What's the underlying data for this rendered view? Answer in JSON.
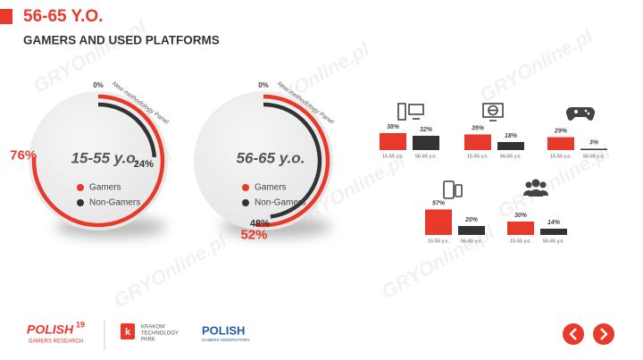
{
  "header": {
    "title": "56-65 Y.O.",
    "subtitle": "GAMERS AND USED PLATFORMS"
  },
  "watermark": "GRYOnline.pl",
  "chart_data": [
    {
      "type": "donut",
      "title": "15-55 y.o.",
      "start": {
        "value": 0,
        "label": "0%"
      },
      "annotation": "New methodology Panel",
      "series": [
        {
          "name": "Gamers",
          "color": "#e8392b",
          "values": [
            76
          ],
          "value_labels": [
            "76%"
          ]
        },
        {
          "name": "Non-Gamers",
          "color": "#333333",
          "values": [
            24
          ],
          "value_labels": [
            "24%"
          ]
        }
      ]
    },
    {
      "type": "donut",
      "title": "56-65 y.o.",
      "start": {
        "value": 0,
        "label": "0%"
      },
      "annotation": "New methodology Panel",
      "series": [
        {
          "name": "Gamers",
          "color": "#e8392b",
          "values": [
            52
          ],
          "value_labels": [
            "52%"
          ]
        },
        {
          "name": "Non-Gamers",
          "color": "#333333",
          "values": [
            48
          ],
          "value_labels": [
            "48%"
          ]
        }
      ]
    },
    {
      "type": "bar",
      "categories": [
        "15-55 y.o.",
        "56-65 y.o."
      ],
      "values": [
        38,
        32
      ],
      "value_labels": [
        "38%",
        "32%"
      ],
      "colors": [
        "#e8392b",
        "#333333"
      ]
    },
    {
      "type": "bar",
      "categories": [
        "15-55 y.o.",
        "56-65 y.o."
      ],
      "values": [
        35,
        18
      ],
      "value_labels": [
        "35%",
        "18%"
      ],
      "colors": [
        "#e8392b",
        "#333333"
      ]
    },
    {
      "type": "bar",
      "categories": [
        "15-55 y.o.",
        "56-65 y.o."
      ],
      "values": [
        29,
        3
      ],
      "value_labels": [
        "29%",
        "3%"
      ],
      "colors": [
        "#e8392b",
        "#333333"
      ]
    },
    {
      "type": "bar",
      "categories": [
        "15-55 y.o.",
        "56-65 y.o."
      ],
      "values": [
        57,
        20
      ],
      "value_labels": [
        "57%",
        "20%"
      ],
      "colors": [
        "#e8392b",
        "#333333"
      ]
    },
    {
      "type": "bar",
      "categories": [
        "15-55 y.o.",
        "56-65 y.o."
      ],
      "values": [
        30,
        14
      ],
      "value_labels": [
        "30%",
        "14%"
      ],
      "colors": [
        "#e8392b",
        "#333333"
      ]
    }
  ],
  "footer": {
    "logo1": {
      "name": "POLISH",
      "badge": "19",
      "caption": "GAMERS RESEARCH"
    },
    "logo2": {
      "lines": [
        "KRAKOW",
        "TECHNOLOGY",
        "PARK"
      ]
    },
    "logo3": {
      "name": "POLISH",
      "caption": "GAMERS OBSERVATORY"
    }
  }
}
